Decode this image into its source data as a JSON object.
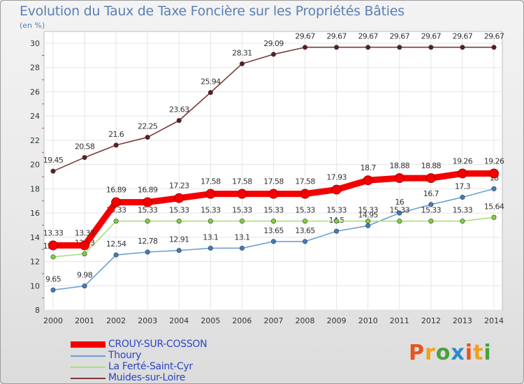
{
  "header": {
    "title": "Evolution du Taux de Taxe Foncière sur les Propriétés Bâties",
    "unit": "(en %)"
  },
  "brand": {
    "logo_text": "Proxiti",
    "colors": [
      "#e8541c",
      "#f0a21e",
      "#4aa13b",
      "#2b8bc9",
      "#e8541c",
      "#f0a21e",
      "#4aa13b"
    ]
  },
  "chart_data": {
    "type": "line",
    "title": "Evolution du Taux de Taxe Foncière sur les Propriétés Bâties",
    "ylabel": "(en %)",
    "xlabel": "",
    "x": [
      "2000",
      "2001",
      "2002",
      "2003",
      "2004",
      "2005",
      "2006",
      "2007",
      "2008",
      "2009",
      "2010",
      "2011",
      "2012",
      "2013",
      "2014"
    ],
    "ylim": [
      8,
      30
    ],
    "yticks": [
      8,
      10,
      12,
      14,
      16,
      18,
      20,
      22,
      24,
      26,
      28,
      30
    ],
    "grid": true,
    "legend_position": "bottom-left",
    "series": [
      {
        "name": "CROUY-SUR-COSSON",
        "color": "#f40000",
        "emphasis": true,
        "values": [
          13.33,
          13.33,
          16.89,
          16.89,
          17.23,
          17.58,
          17.58,
          17.58,
          17.58,
          17.93,
          18.7,
          18.88,
          18.88,
          19.26,
          19.26
        ],
        "labels": [
          "13.33",
          "13.33",
          "16.89",
          "16.89",
          "17.23",
          "17.58",
          "17.58",
          "17.58",
          "17.58",
          "17.93",
          "18.7",
          "18.88",
          "18.88",
          "19.26",
          "19.26"
        ]
      },
      {
        "name": "Thoury",
        "color": "#6e9fd0",
        "marker": "#3f7ec0",
        "values": [
          9.65,
          9.98,
          12.54,
          12.78,
          12.91,
          13.1,
          13.1,
          13.65,
          13.65,
          14.5,
          14.95,
          16,
          16.7,
          17.3,
          18
        ],
        "labels": [
          "9.65",
          "9.98",
          "12.54",
          "12.78",
          "12.91",
          "13.1",
          "13.1",
          "13.65",
          "13.65",
          "14.5",
          "14.95",
          "16",
          "16.7",
          "17.3",
          "18"
        ]
      },
      {
        "name": "La Ferté-Saint-Cyr",
        "color": "#a8e07a",
        "marker": "#7ed13f",
        "values": [
          12.38,
          12.63,
          15.33,
          15.33,
          15.33,
          15.33,
          15.33,
          15.33,
          15.33,
          15.33,
          15.33,
          15.33,
          15.33,
          15.33,
          15.64
        ],
        "labels": [
          "12.38",
          "12.63",
          "15.33",
          "15.33",
          "15.33",
          "15.33",
          "15.33",
          "15.33",
          "15.33",
          "15.33",
          "15.33",
          "15.33",
          "15.33",
          "15.33",
          "15.64"
        ]
      },
      {
        "name": "Muides-sur-Loire",
        "color": "#7a3a3a",
        "marker": "#5c1d22",
        "values": [
          19.45,
          20.58,
          21.6,
          22.25,
          23.63,
          25.94,
          28.31,
          29.09,
          29.67,
          29.67,
          29.67,
          29.67,
          29.67,
          29.67,
          29.67
        ],
        "labels": [
          "19.45",
          "20.58",
          "21.6",
          "22.25",
          "23.63",
          "25.94",
          "28.31",
          "29.09",
          "29.67",
          "29.67",
          "29.67",
          "29.67",
          "29.67",
          "29.67",
          "29.67"
        ]
      }
    ]
  }
}
